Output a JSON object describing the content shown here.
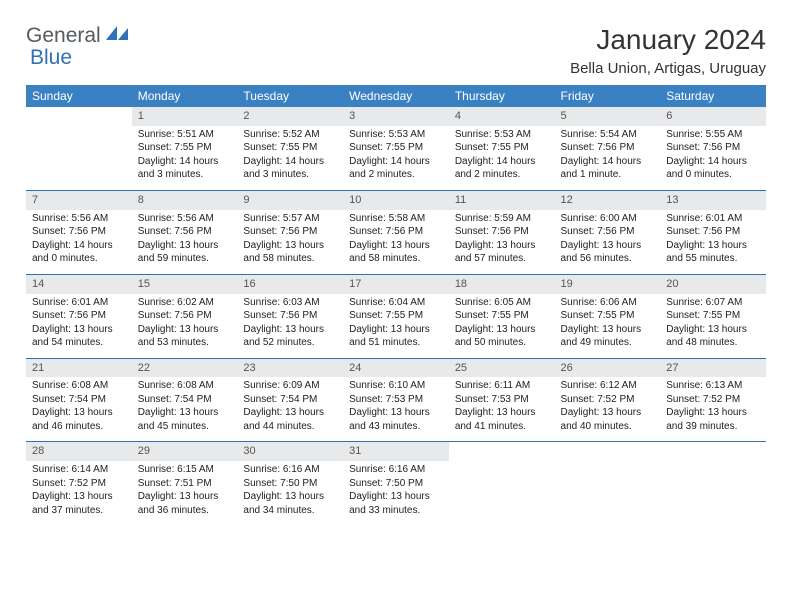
{
  "logo": {
    "part1": "General",
    "part2": "Blue"
  },
  "title": "January 2024",
  "location": "Bella Union, Artigas, Uruguay",
  "colors": {
    "header_bg": "#3a81c4",
    "header_text": "#ffffff",
    "daynum_bg": "#e8e9ea",
    "border": "#2f72b6",
    "logo_gray": "#555b60",
    "logo_blue": "#2f72b6",
    "body_text": "#222222",
    "bg": "#ffffff"
  },
  "fonts": {
    "title_size": 28,
    "location_size": 15,
    "header_size": 12,
    "daynum_size": 11,
    "body_size": 10
  },
  "weekdays": [
    "Sunday",
    "Monday",
    "Tuesday",
    "Wednesday",
    "Thursday",
    "Friday",
    "Saturday"
  ],
  "weeks": [
    [
      {
        "n": "",
        "sr": "",
        "ss": "",
        "dl": ""
      },
      {
        "n": "1",
        "sr": "Sunrise: 5:51 AM",
        "ss": "Sunset: 7:55 PM",
        "dl": "Daylight: 14 hours and 3 minutes."
      },
      {
        "n": "2",
        "sr": "Sunrise: 5:52 AM",
        "ss": "Sunset: 7:55 PM",
        "dl": "Daylight: 14 hours and 3 minutes."
      },
      {
        "n": "3",
        "sr": "Sunrise: 5:53 AM",
        "ss": "Sunset: 7:55 PM",
        "dl": "Daylight: 14 hours and 2 minutes."
      },
      {
        "n": "4",
        "sr": "Sunrise: 5:53 AM",
        "ss": "Sunset: 7:55 PM",
        "dl": "Daylight: 14 hours and 2 minutes."
      },
      {
        "n": "5",
        "sr": "Sunrise: 5:54 AM",
        "ss": "Sunset: 7:56 PM",
        "dl": "Daylight: 14 hours and 1 minute."
      },
      {
        "n": "6",
        "sr": "Sunrise: 5:55 AM",
        "ss": "Sunset: 7:56 PM",
        "dl": "Daylight: 14 hours and 0 minutes."
      }
    ],
    [
      {
        "n": "7",
        "sr": "Sunrise: 5:56 AM",
        "ss": "Sunset: 7:56 PM",
        "dl": "Daylight: 14 hours and 0 minutes."
      },
      {
        "n": "8",
        "sr": "Sunrise: 5:56 AM",
        "ss": "Sunset: 7:56 PM",
        "dl": "Daylight: 13 hours and 59 minutes."
      },
      {
        "n": "9",
        "sr": "Sunrise: 5:57 AM",
        "ss": "Sunset: 7:56 PM",
        "dl": "Daylight: 13 hours and 58 minutes."
      },
      {
        "n": "10",
        "sr": "Sunrise: 5:58 AM",
        "ss": "Sunset: 7:56 PM",
        "dl": "Daylight: 13 hours and 58 minutes."
      },
      {
        "n": "11",
        "sr": "Sunrise: 5:59 AM",
        "ss": "Sunset: 7:56 PM",
        "dl": "Daylight: 13 hours and 57 minutes."
      },
      {
        "n": "12",
        "sr": "Sunrise: 6:00 AM",
        "ss": "Sunset: 7:56 PM",
        "dl": "Daylight: 13 hours and 56 minutes."
      },
      {
        "n": "13",
        "sr": "Sunrise: 6:01 AM",
        "ss": "Sunset: 7:56 PM",
        "dl": "Daylight: 13 hours and 55 minutes."
      }
    ],
    [
      {
        "n": "14",
        "sr": "Sunrise: 6:01 AM",
        "ss": "Sunset: 7:56 PM",
        "dl": "Daylight: 13 hours and 54 minutes."
      },
      {
        "n": "15",
        "sr": "Sunrise: 6:02 AM",
        "ss": "Sunset: 7:56 PM",
        "dl": "Daylight: 13 hours and 53 minutes."
      },
      {
        "n": "16",
        "sr": "Sunrise: 6:03 AM",
        "ss": "Sunset: 7:56 PM",
        "dl": "Daylight: 13 hours and 52 minutes."
      },
      {
        "n": "17",
        "sr": "Sunrise: 6:04 AM",
        "ss": "Sunset: 7:55 PM",
        "dl": "Daylight: 13 hours and 51 minutes."
      },
      {
        "n": "18",
        "sr": "Sunrise: 6:05 AM",
        "ss": "Sunset: 7:55 PM",
        "dl": "Daylight: 13 hours and 50 minutes."
      },
      {
        "n": "19",
        "sr": "Sunrise: 6:06 AM",
        "ss": "Sunset: 7:55 PM",
        "dl": "Daylight: 13 hours and 49 minutes."
      },
      {
        "n": "20",
        "sr": "Sunrise: 6:07 AM",
        "ss": "Sunset: 7:55 PM",
        "dl": "Daylight: 13 hours and 48 minutes."
      }
    ],
    [
      {
        "n": "21",
        "sr": "Sunrise: 6:08 AM",
        "ss": "Sunset: 7:54 PM",
        "dl": "Daylight: 13 hours and 46 minutes."
      },
      {
        "n": "22",
        "sr": "Sunrise: 6:08 AM",
        "ss": "Sunset: 7:54 PM",
        "dl": "Daylight: 13 hours and 45 minutes."
      },
      {
        "n": "23",
        "sr": "Sunrise: 6:09 AM",
        "ss": "Sunset: 7:54 PM",
        "dl": "Daylight: 13 hours and 44 minutes."
      },
      {
        "n": "24",
        "sr": "Sunrise: 6:10 AM",
        "ss": "Sunset: 7:53 PM",
        "dl": "Daylight: 13 hours and 43 minutes."
      },
      {
        "n": "25",
        "sr": "Sunrise: 6:11 AM",
        "ss": "Sunset: 7:53 PM",
        "dl": "Daylight: 13 hours and 41 minutes."
      },
      {
        "n": "26",
        "sr": "Sunrise: 6:12 AM",
        "ss": "Sunset: 7:52 PM",
        "dl": "Daylight: 13 hours and 40 minutes."
      },
      {
        "n": "27",
        "sr": "Sunrise: 6:13 AM",
        "ss": "Sunset: 7:52 PM",
        "dl": "Daylight: 13 hours and 39 minutes."
      }
    ],
    [
      {
        "n": "28",
        "sr": "Sunrise: 6:14 AM",
        "ss": "Sunset: 7:52 PM",
        "dl": "Daylight: 13 hours and 37 minutes."
      },
      {
        "n": "29",
        "sr": "Sunrise: 6:15 AM",
        "ss": "Sunset: 7:51 PM",
        "dl": "Daylight: 13 hours and 36 minutes."
      },
      {
        "n": "30",
        "sr": "Sunrise: 6:16 AM",
        "ss": "Sunset: 7:50 PM",
        "dl": "Daylight: 13 hours and 34 minutes."
      },
      {
        "n": "31",
        "sr": "Sunrise: 6:16 AM",
        "ss": "Sunset: 7:50 PM",
        "dl": "Daylight: 13 hours and 33 minutes."
      },
      {
        "n": "",
        "sr": "",
        "ss": "",
        "dl": ""
      },
      {
        "n": "",
        "sr": "",
        "ss": "",
        "dl": ""
      },
      {
        "n": "",
        "sr": "",
        "ss": "",
        "dl": ""
      }
    ]
  ]
}
